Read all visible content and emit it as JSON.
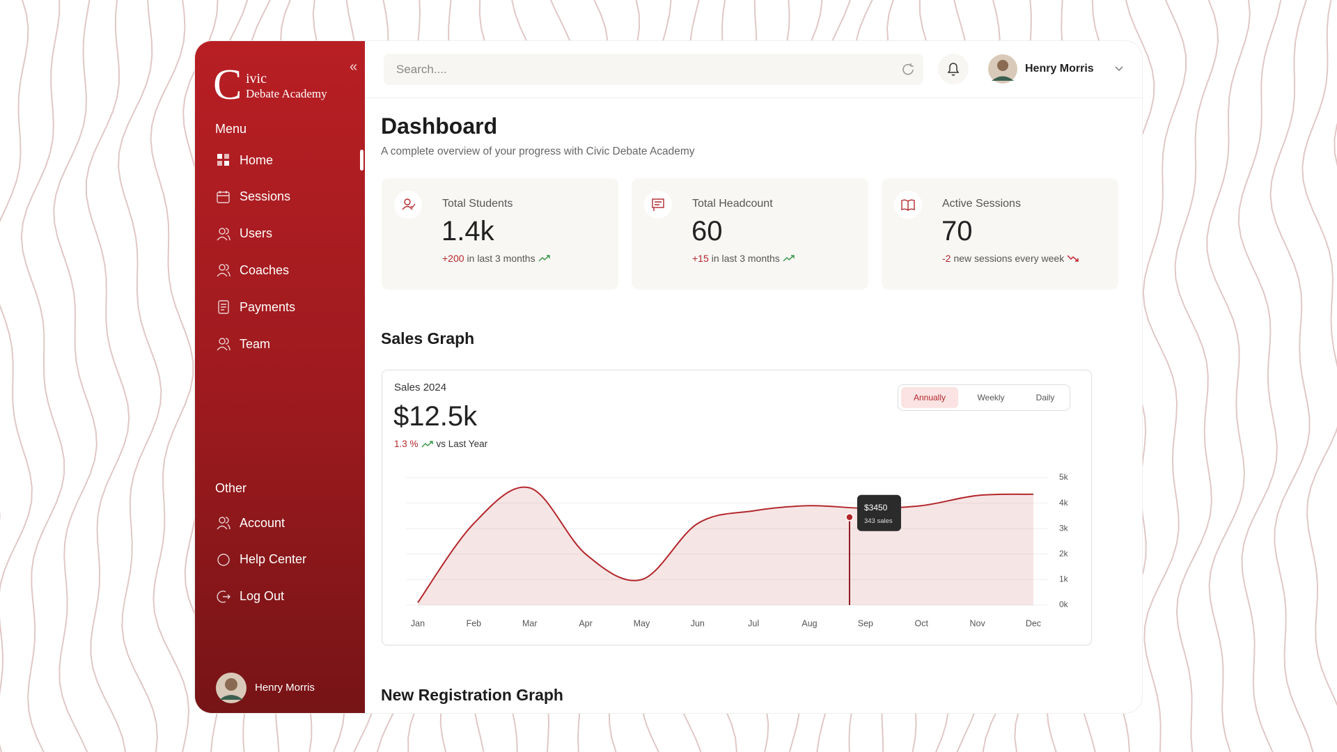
{
  "brand": {
    "letter": "C",
    "line1": "ivic",
    "line2": "Debate Academy"
  },
  "sidebar": {
    "menu_title": "Menu",
    "menu": [
      "Home",
      "Sessions",
      "Users",
      "Coaches",
      "Payments",
      "Team"
    ],
    "other_title": "Other",
    "other": [
      "Account",
      "Help Center",
      "Log Out"
    ],
    "user": "Henry Morris"
  },
  "header": {
    "search_placeholder": "Search....",
    "user": "Henry Morris"
  },
  "page": {
    "title": "Dashboard",
    "subtitle": "A complete overview of your progress with Civic Debate Academy"
  },
  "stats": [
    {
      "label": "Total Students",
      "value": "1.4k",
      "change": "+200",
      "note": "in last 3 months"
    },
    {
      "label": "Total Headcount",
      "value": "60",
      "change": "+15",
      "note": "in last 3 months"
    },
    {
      "label": "Active Sessions",
      "value": "70",
      "change": "-2",
      "note": "new sessions every week"
    }
  ],
  "sections": {
    "sales": "Sales Graph",
    "registration": "New Registration Graph"
  },
  "chart_data": {
    "type": "line",
    "title": "Sales 2024",
    "headline": "$12.5k",
    "change": "1.3 %",
    "change_note": "vs Last Year",
    "tabs": [
      "Annually",
      "Weekly",
      "Daily"
    ],
    "categories": [
      "Jan",
      "Feb",
      "Mar",
      "Apr",
      "May",
      "Jun",
      "Jul",
      "Aug",
      "Sep",
      "Oct",
      "Nov",
      "Dec"
    ],
    "values": [
      100,
      3200,
      4600,
      2000,
      1000,
      3200,
      3700,
      3900,
      3800,
      3900,
      4300,
      4350
    ],
    "color": "#b3272c",
    "ylim": [
      0,
      5000
    ],
    "yticks": [
      {
        "value": 0,
        "label": "0k"
      },
      {
        "value": 1000,
        "label": "1k"
      },
      {
        "value": 2000,
        "label": "2k"
      },
      {
        "value": 3000,
        "label": "3k"
      },
      {
        "value": 4000,
        "label": "4k"
      },
      {
        "value": 5000,
        "label": "5k"
      }
    ],
    "grid": true,
    "annotation": {
      "value": 3450,
      "label": "$3450",
      "detail": "343 sales"
    }
  }
}
